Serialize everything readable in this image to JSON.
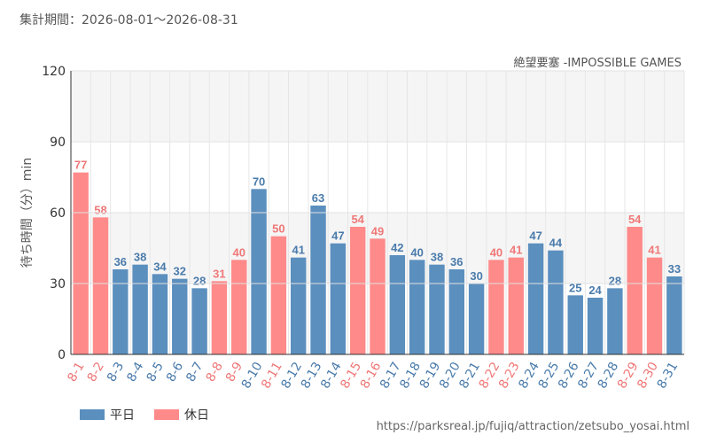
{
  "header": {
    "period": "集計期間：2026-08-01～2026-08-31"
  },
  "chart_data": {
    "type": "bar",
    "title": "絶望要塞 -IMPOSSIBLE GAMES",
    "ylabel": "待ち時間（分）min",
    "xlabel": "",
    "ylim": [
      0,
      120
    ],
    "yticks": [
      0,
      30,
      60,
      90,
      120
    ],
    "grid": true,
    "categories": [
      "8-1",
      "8-2",
      "8-3",
      "8-4",
      "8-5",
      "8-6",
      "8-7",
      "8-8",
      "8-9",
      "8-10",
      "8-11",
      "8-12",
      "8-13",
      "8-14",
      "8-15",
      "8-16",
      "8-17",
      "8-18",
      "8-19",
      "8-20",
      "8-21",
      "8-22",
      "8-23",
      "8-24",
      "8-25",
      "8-26",
      "8-27",
      "8-28",
      "8-29",
      "8-30",
      "8-31"
    ],
    "values": [
      77,
      58,
      36,
      38,
      34,
      32,
      28,
      31,
      40,
      70,
      50,
      41,
      63,
      47,
      54,
      49,
      42,
      40,
      38,
      36,
      30,
      40,
      41,
      47,
      44,
      25,
      24,
      28,
      54,
      41,
      33
    ],
    "day_type": [
      "holiday",
      "holiday",
      "weekday",
      "weekday",
      "weekday",
      "weekday",
      "weekday",
      "holiday",
      "holiday",
      "weekday",
      "holiday",
      "weekday",
      "weekday",
      "weekday",
      "holiday",
      "holiday",
      "weekday",
      "weekday",
      "weekday",
      "weekday",
      "weekday",
      "holiday",
      "holiday",
      "weekday",
      "weekday",
      "weekday",
      "weekday",
      "weekday",
      "holiday",
      "holiday",
      "weekday"
    ],
    "colors": {
      "weekday": "#5b8fbe",
      "holiday": "#ff8a8a",
      "weekday_label": "#4a7bab",
      "holiday_label": "#f07878"
    },
    "legend": {
      "position": "bottom-left",
      "items": [
        {
          "key": "weekday",
          "label": "平日"
        },
        {
          "key": "holiday",
          "label": "休日"
        }
      ]
    }
  },
  "footer": {
    "source": "https://parksreal.jp/fujiq/attraction/zetsubo_yosai.html"
  }
}
